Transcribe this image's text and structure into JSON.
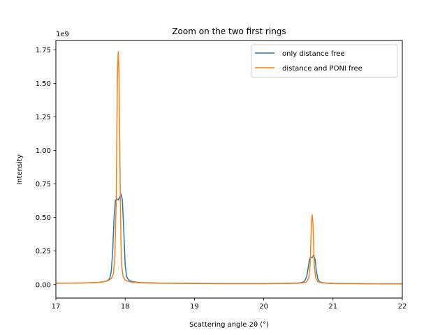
{
  "chart_data": {
    "type": "line",
    "title": "Zoom on the two first rings",
    "xlabel": "Scattering angle 2θ (°)",
    "ylabel": "Intensity",
    "y_offset_label": "1e9",
    "xlim": [
      17,
      22
    ],
    "ylim": [
      -0.1,
      1.82
    ],
    "y_scale_factor": 1000000000,
    "grid": false,
    "legend_position": "top-right",
    "xticks": [
      17,
      18,
      19,
      20,
      21,
      22
    ],
    "xtick_labels": [
      "17",
      "18",
      "19",
      "20",
      "21",
      "22"
    ],
    "yticks": [
      0,
      0.25,
      0.5,
      0.75,
      1.0,
      1.25,
      1.5,
      1.75
    ],
    "ytick_labels": [
      "0.00",
      "0.25",
      "0.50",
      "0.75",
      "1.00",
      "1.25",
      "1.50",
      "1.75"
    ],
    "series": [
      {
        "name": "only distance free",
        "color": "#1f77b4",
        "x": [
          17.0,
          17.4,
          17.6,
          17.7,
          17.75,
          17.78,
          17.8,
          17.82,
          17.84,
          17.86,
          17.88,
          17.9,
          17.92,
          17.94,
          17.96,
          17.98,
          18.0,
          18.02,
          18.05,
          18.1,
          18.2,
          18.5,
          19.0,
          19.5,
          20.0,
          20.3,
          20.5,
          20.55,
          20.58,
          20.6,
          20.62,
          20.64,
          20.66,
          20.68,
          20.7,
          20.72,
          20.74,
          20.76,
          20.78,
          20.8,
          20.83,
          20.9,
          21.0,
          21.5,
          22.0
        ],
        "y": [
          0.01,
          0.012,
          0.016,
          0.022,
          0.03,
          0.05,
          0.1,
          0.25,
          0.5,
          0.63,
          0.64,
          0.63,
          0.65,
          0.675,
          0.63,
          0.4,
          0.15,
          0.06,
          0.035,
          0.022,
          0.015,
          0.011,
          0.009,
          0.008,
          0.008,
          0.009,
          0.012,
          0.016,
          0.022,
          0.035,
          0.06,
          0.12,
          0.19,
          0.205,
          0.2,
          0.22,
          0.19,
          0.1,
          0.045,
          0.024,
          0.016,
          0.011,
          0.009,
          0.007,
          0.006
        ]
      },
      {
        "name": "distance and PONI free",
        "color": "#ff7f0e",
        "x": [
          17.0,
          17.4,
          17.6,
          17.7,
          17.75,
          17.8,
          17.83,
          17.85,
          17.87,
          17.88,
          17.89,
          17.9,
          17.91,
          17.92,
          17.93,
          17.94,
          17.95,
          17.97,
          18.0,
          18.05,
          18.1,
          18.2,
          18.5,
          19.0,
          19.5,
          20.0,
          20.3,
          20.5,
          20.58,
          20.62,
          20.65,
          20.67,
          20.68,
          20.69,
          20.7,
          20.71,
          20.72,
          20.73,
          20.75,
          20.78,
          20.83,
          20.9,
          21.0,
          21.5,
          22.0
        ],
        "y": [
          0.01,
          0.012,
          0.016,
          0.022,
          0.028,
          0.045,
          0.08,
          0.2,
          0.6,
          1.1,
          1.6,
          1.735,
          1.6,
          1.15,
          0.65,
          0.3,
          0.14,
          0.06,
          0.035,
          0.022,
          0.018,
          0.013,
          0.01,
          0.008,
          0.007,
          0.007,
          0.008,
          0.01,
          0.014,
          0.02,
          0.05,
          0.15,
          0.32,
          0.47,
          0.52,
          0.46,
          0.3,
          0.14,
          0.05,
          0.022,
          0.014,
          0.01,
          0.008,
          0.006,
          0.005
        ]
      }
    ]
  }
}
